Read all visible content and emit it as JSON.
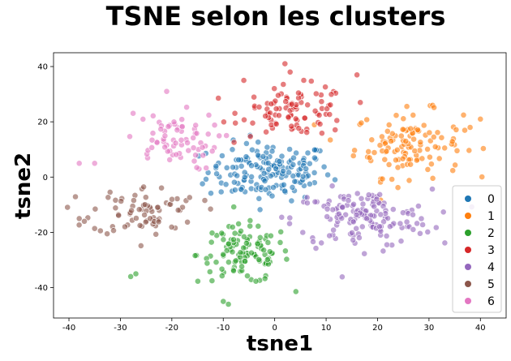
{
  "chart_data": {
    "type": "scatter",
    "title": "TSNE selon les clusters",
    "xlabel": "tsne1",
    "ylabel": "tsne2",
    "xlim": [
      -43,
      45
    ],
    "ylim": [
      -51,
      45
    ],
    "xticks": [
      -40,
      -30,
      -20,
      -10,
      0,
      10,
      20,
      30,
      40
    ],
    "yticks": [
      -40,
      -20,
      0,
      20,
      40
    ],
    "grid": false,
    "legend_position": "lower-right",
    "series": [
      {
        "name": "0",
        "color": "#1f77b4",
        "center": [
          -1,
          2
        ],
        "spread": [
          8,
          7
        ],
        "count": 170
      },
      {
        "name": "1",
        "color": "#ff7f0e",
        "center": [
          26,
          12
        ],
        "spread": [
          7,
          8
        ],
        "count": 120
      },
      {
        "name": "2",
        "color": "#2ca02c",
        "center": [
          -6,
          -28
        ],
        "spread": [
          6,
          7
        ],
        "count": 115
      },
      {
        "name": "3",
        "color": "#d62728",
        "center": [
          4,
          24
        ],
        "spread": [
          7,
          6
        ],
        "count": 95
      },
      {
        "name": "4",
        "color": "#9467bd",
        "center": [
          17,
          -15
        ],
        "spread": [
          9,
          7
        ],
        "count": 150
      },
      {
        "name": "5",
        "color": "#8c564b",
        "center": [
          -25,
          -12
        ],
        "spread": [
          7,
          6
        ],
        "count": 75
      },
      {
        "name": "6",
        "color": "#e377c2",
        "center": [
          -20,
          13
        ],
        "spread": [
          6,
          7
        ],
        "count": 70
      }
    ],
    "extra_points": [
      {
        "series": "3",
        "x": 2,
        "y": 41
      },
      {
        "series": "3",
        "x": 3,
        "y": 38
      },
      {
        "series": "3",
        "x": -6,
        "y": 35
      },
      {
        "series": "3",
        "x": 16,
        "y": 37
      },
      {
        "series": "1",
        "x": 40,
        "y": 21
      },
      {
        "series": "1",
        "x": 38,
        "y": 18
      },
      {
        "series": "6",
        "x": -21,
        "y": 31
      },
      {
        "series": "6",
        "x": -38,
        "y": 5
      },
      {
        "series": "6",
        "x": -35,
        "y": 5
      },
      {
        "series": "5",
        "x": -38,
        "y": -15
      },
      {
        "series": "5",
        "x": -37,
        "y": -16
      },
      {
        "series": "2",
        "x": -27,
        "y": -35
      },
      {
        "series": "2",
        "x": -28,
        "y": -36
      },
      {
        "series": "2",
        "x": -10,
        "y": -45
      },
      {
        "series": "2",
        "x": -9,
        "y": -46
      }
    ]
  }
}
